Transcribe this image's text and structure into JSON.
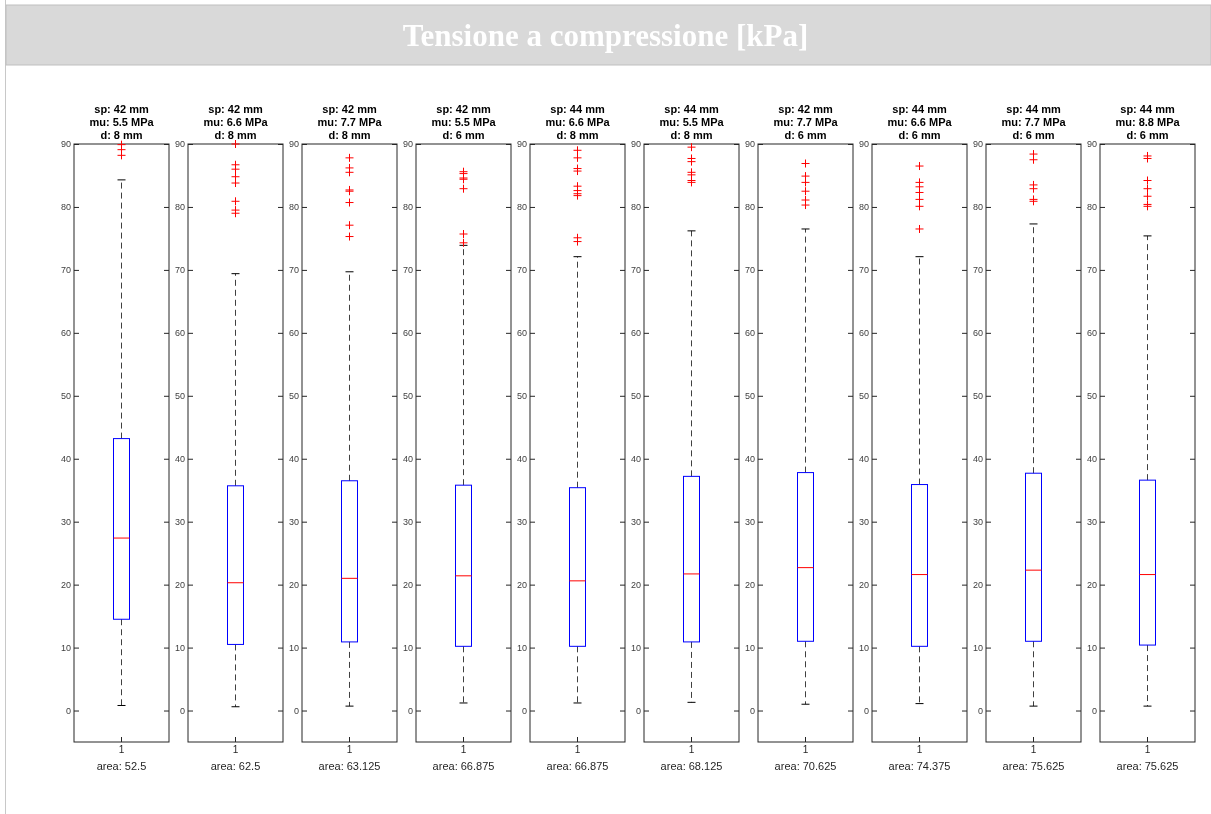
{
  "chart_data": [
    {
      "type": "box",
      "title": "sp: 42 mm\nmu: 5.5 MPa\nd: 8 mm",
      "annotations": [
        "Tensione a compressione [kPa]"
      ],
      "categories": [
        "1"
      ],
      "xlabel": "area: 52.5",
      "ylim": [
        -5,
        90
      ],
      "yticks": [
        0,
        10,
        20,
        30,
        40,
        50,
        60,
        70,
        80,
        90
      ],
      "boxes": [
        {
          "low": 0.8,
          "q1": 14.5,
          "median": 27.4,
          "q3": 43.2,
          "high": 84.3,
          "outliers": [
            89.9,
            89.1,
            88.2
          ]
        }
      ]
    },
    {
      "type": "box",
      "title": "sp: 42 mm\nmu: 6.6 MPa\nd: 8 mm",
      "categories": [
        "1"
      ],
      "xlabel": "area: 62.5",
      "ylim": [
        -5,
        90
      ],
      "yticks": [
        0,
        10,
        20,
        30,
        40,
        50,
        60,
        70,
        80,
        90
      ],
      "boxes": [
        {
          "low": 0.6,
          "q1": 10.5,
          "median": 20.3,
          "q3": 35.7,
          "high": 69.4,
          "outliers": [
            90,
            86.7,
            86,
            84.8,
            83.8,
            80.9,
            79.5,
            79
          ]
        }
      ]
    },
    {
      "type": "box",
      "title": "sp: 42 mm\nmu: 7.7 MPa\nd: 8 mm",
      "categories": [
        "1"
      ],
      "xlabel": "area: 63.125",
      "ylim": [
        -5,
        90
      ],
      "yticks": [
        0,
        10,
        20,
        30,
        40,
        50,
        60,
        70,
        80,
        90
      ],
      "boxes": [
        {
          "low": 0.7,
          "q1": 10.9,
          "median": 21,
          "q3": 36.5,
          "high": 69.7,
          "outliers": [
            87.8,
            86.2,
            85.5,
            82.7,
            82.5,
            80.7,
            77.1,
            75.3
          ]
        }
      ]
    },
    {
      "type": "box",
      "title": "sp: 42 mm\nmu: 5.5 MPa\nd: 6 mm",
      "categories": [
        "1"
      ],
      "xlabel": "area: 66.875",
      "ylim": [
        -5,
        90
      ],
      "yticks": [
        0,
        10,
        20,
        30,
        40,
        50,
        60,
        70,
        80,
        90
      ],
      "boxes": [
        {
          "low": 1.2,
          "q1": 10.2,
          "median": 21.4,
          "q3": 35.8,
          "high": 73.9,
          "outliers": [
            85.6,
            85.3,
            84.6,
            84.4,
            82.9,
            75.7,
            74.3
          ]
        }
      ]
    },
    {
      "type": "box",
      "title": "sp: 44 mm\nmu: 6.6 MPa\nd: 8 mm",
      "categories": [
        "1"
      ],
      "xlabel": "area: 66.875",
      "ylim": [
        -5,
        90
      ],
      "yticks": [
        0,
        10,
        20,
        30,
        40,
        50,
        60,
        70,
        80,
        90
      ],
      "boxes": [
        {
          "low": 1.2,
          "q1": 10.2,
          "median": 20.6,
          "q3": 35.4,
          "high": 72.1,
          "outliers": [
            89,
            87.8,
            86.1,
            85.7,
            83.3,
            82.6,
            82.1,
            81.8,
            75.1,
            74.5
          ]
        }
      ]
    },
    {
      "type": "box",
      "title": "sp: 44 mm\nmu: 5.5 MPa\nd: 8 mm",
      "categories": [
        "1"
      ],
      "xlabel": "area: 68.125",
      "ylim": [
        -5,
        90
      ],
      "yticks": [
        0,
        10,
        20,
        30,
        40,
        50,
        60,
        70,
        80,
        90
      ],
      "boxes": [
        {
          "low": 1.3,
          "q1": 10.9,
          "median": 21.7,
          "q3": 37.2,
          "high": 76.2,
          "outliers": [
            89.5,
            87.7,
            87.2,
            85.5,
            85.1,
            84.2,
            83.9
          ]
        }
      ]
    },
    {
      "type": "box",
      "title": "sp: 42 mm\nmu: 7.7 MPa\nd: 6 mm",
      "categories": [
        "1"
      ],
      "xlabel": "area: 70.625",
      "ylim": [
        -5,
        90
      ],
      "yticks": [
        0,
        10,
        20,
        30,
        40,
        50,
        60,
        70,
        80,
        90
      ],
      "boxes": [
        {
          "low": 1,
          "q1": 11,
          "median": 22.7,
          "q3": 37.8,
          "high": 76.5,
          "outliers": [
            86.9,
            84.9,
            83.9,
            82.5,
            81.1,
            80.3
          ]
        }
      ]
    },
    {
      "type": "box",
      "title": "sp: 44 mm\nmu: 6.6 MPa\nd: 6 mm",
      "categories": [
        "1"
      ],
      "xlabel": "area: 74.375",
      "ylim": [
        -5,
        90
      ],
      "yticks": [
        0,
        10,
        20,
        30,
        40,
        50,
        60,
        70,
        80,
        90
      ],
      "boxes": [
        {
          "low": 1.1,
          "q1": 10.2,
          "median": 21.6,
          "q3": 35.9,
          "high": 72.1,
          "outliers": [
            86.5,
            83.9,
            83.2,
            82.3,
            81.2,
            80.1,
            76.5
          ]
        }
      ]
    },
    {
      "type": "box",
      "title": "sp: 44 mm\nmu: 7.7 MPa\nd: 6 mm",
      "categories": [
        "1"
      ],
      "xlabel": "area: 75.625",
      "ylim": [
        -5,
        90
      ],
      "yticks": [
        0,
        10,
        20,
        30,
        40,
        50,
        60,
        70,
        80,
        90
      ],
      "boxes": [
        {
          "low": 0.7,
          "q1": 11,
          "median": 22.3,
          "q3": 37.7,
          "high": 77.3,
          "outliers": [
            88.4,
            87.5,
            83.5,
            82.9,
            81.2,
            80.9
          ]
        }
      ]
    },
    {
      "type": "box",
      "title": "sp: 44 mm\nmu: 8.8 MPa\nd: 6 mm",
      "categories": [
        "1"
      ],
      "xlabel": "area: 75.625",
      "ylim": [
        -5,
        90
      ],
      "yticks": [
        0,
        10,
        20,
        30,
        40,
        50,
        60,
        70,
        80,
        90
      ],
      "boxes": [
        {
          "low": 0.7,
          "q1": 10.4,
          "median": 21.6,
          "q3": 36.6,
          "high": 75.4,
          "outliers": [
            88.1,
            87.7,
            84.2,
            82.9,
            81.7,
            80.4,
            80.1
          ]
        }
      ]
    }
  ]
}
